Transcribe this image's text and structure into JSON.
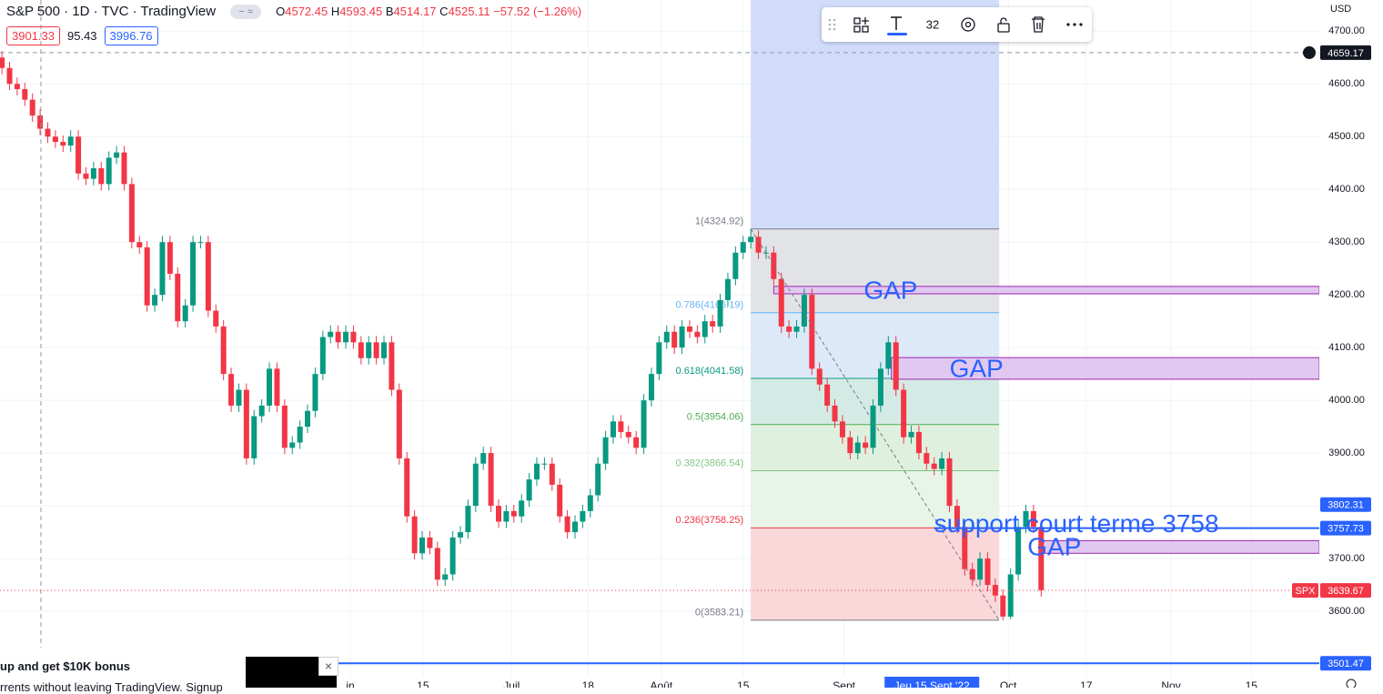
{
  "header": {
    "symbol": "S&P 500 · 1D · TVC · TradingView",
    "ohlc": [
      {
        "key": "O",
        "value": "4572.45"
      },
      {
        "key": "H",
        "value": "4593.45"
      },
      {
        "key": "B",
        "value": "4514.17"
      },
      {
        "key": "C",
        "value": "4525.11"
      }
    ],
    "change": "−57.52 (−1.26%)",
    "sell": "3901.33",
    "spread": "95.43",
    "buy": "3996.76"
  },
  "toolbar": {
    "font_size": "32"
  },
  "banner": {
    "title": "up and get $10K bonus",
    "text": "rrents without leaving TradingView. Signup"
  },
  "chart_data": {
    "type": "candlestick",
    "up_color": "#089981",
    "down_color": "#f23645",
    "open": [
      4650,
      4630,
      4600,
      4590,
      4570,
      4540,
      4515,
      4500,
      4490,
      4483,
      4500,
      4430,
      4420,
      4440,
      4410,
      4460,
      4470,
      4410,
      4300,
      4290,
      4180,
      4200,
      4300,
      4240,
      4150,
      4180,
      4300,
      4300,
      4170,
      4140,
      4050,
      3990,
      4020,
      3890,
      3970,
      3990,
      4060,
      3990,
      3910,
      3920,
      3950,
      3980,
      4050,
      4120,
      4130,
      4110,
      4130,
      4110,
      4080,
      4110,
      4080,
      4110,
      4020,
      3890,
      3780,
      3710,
      3740,
      3720,
      3660,
      3670,
      3740,
      3750,
      3800,
      3880,
      3900,
      3800,
      3770,
      3790,
      3780,
      3810,
      3850,
      3880,
      3880,
      3840,
      3780,
      3750,
      3770,
      3790,
      3820,
      3880,
      3930,
      3960,
      3940,
      3930,
      3910,
      4000,
      4050,
      4110,
      4130,
      4100,
      4140,
      4130,
      4120,
      4150,
      4140,
      4190,
      4230,
      4280,
      4300,
      4310,
      4280,
      4280,
      4230,
      4140,
      4130,
      4140,
      4200,
      4060,
      4030,
      3990,
      3960,
      3930,
      3900,
      3920,
      3910,
      3990,
      4060,
      4110,
      4020,
      3930,
      3940,
      3900,
      3880,
      3870,
      3890,
      3800,
      3760,
      3680,
      3660,
      3700,
      3650,
      3630,
      3590,
      3670,
      3760,
      3790,
      3760
    ],
    "high": [
      4662,
      4642,
      4612,
      4602,
      4582,
      4552,
      4527,
      4512,
      4502,
      4512,
      4512,
      4442,
      4452,
      4452,
      4472,
      4482,
      4482,
      4422,
      4312,
      4302,
      4212,
      4312,
      4312,
      4252,
      4192,
      4312,
      4312,
      4312,
      4182,
      4152,
      4062,
      4032,
      4032,
      3982,
      4002,
      4072,
      4072,
      4002,
      3932,
      3962,
      3992,
      4062,
      4132,
      4142,
      4142,
      4142,
      4142,
      4122,
      4122,
      4122,
      4122,
      4122,
      4032,
      3902,
      3792,
      3752,
      3752,
      3732,
      3682,
      3752,
      3762,
      3812,
      3892,
      3912,
      3912,
      3812,
      3802,
      3802,
      3822,
      3862,
      3892,
      3892,
      3892,
      3852,
      3792,
      3782,
      3802,
      3832,
      3892,
      3942,
      3972,
      3972,
      3952,
      3942,
      4012,
      4062,
      4122,
      4142,
      4142,
      4152,
      4152,
      4142,
      4162,
      4162,
      4202,
      4242,
      4292,
      4312,
      4325,
      4322,
      4292,
      4292,
      4242,
      4152,
      4152,
      4212,
      4212,
      4072,
      4042,
      4002,
      3972,
      3942,
      3932,
      3932,
      4002,
      4072,
      4122,
      4122,
      4032,
      3952,
      3952,
      3912,
      3892,
      3902,
      3902,
      3812,
      3772,
      3692,
      3712,
      3712,
      3662,
      3642,
      3682,
      3772,
      3802,
      3802,
      3772
    ],
    "low": [
      4618,
      4588,
      4578,
      4558,
      4528,
      4503,
      4488,
      4478,
      4471,
      4471,
      4418,
      4408,
      4408,
      4398,
      4398,
      4448,
      4398,
      4288,
      4278,
      4168,
      4168,
      4188,
      4228,
      4138,
      4138,
      4168,
      4288,
      4158,
      4128,
      4038,
      3978,
      3978,
      3878,
      3878,
      3958,
      3978,
      3978,
      3898,
      3898,
      3908,
      3938,
      3968,
      4038,
      4108,
      4098,
      4098,
      4098,
      4068,
      4068,
      4068,
      4068,
      4008,
      3878,
      3768,
      3698,
      3698,
      3708,
      3648,
      3648,
      3658,
      3728,
      3738,
      3788,
      3868,
      3788,
      3758,
      3758,
      3768,
      3768,
      3798,
      3838,
      3868,
      3828,
      3768,
      3738,
      3738,
      3758,
      3778,
      3808,
      3868,
      3918,
      3928,
      3918,
      3898,
      3898,
      3988,
      4038,
      4098,
      4088,
      4088,
      4118,
      4108,
      4108,
      4128,
      4128,
      4178,
      4218,
      4268,
      4288,
      4268,
      4268,
      4218,
      4128,
      4118,
      4118,
      4128,
      4048,
      4018,
      3978,
      3948,
      3918,
      3888,
      3888,
      3898,
      3898,
      3978,
      4048,
      4008,
      3918,
      3918,
      3888,
      3868,
      3858,
      3858,
      3788,
      3748,
      3668,
      3648,
      3648,
      3638,
      3618,
      3583,
      3585,
      3658,
      3748,
      3748,
      3628
    ],
    "close": [
      4630,
      4600,
      4590,
      4570,
      4540,
      4515,
      4500,
      4490,
      4483,
      4500,
      4430,
      4420,
      4440,
      4410,
      4460,
      4470,
      4410,
      4300,
      4290,
      4180,
      4200,
      4300,
      4240,
      4150,
      4180,
      4300,
      4300,
      4170,
      4140,
      4050,
      3990,
      4020,
      3890,
      3970,
      3990,
      4060,
      3990,
      3910,
      3920,
      3950,
      3980,
      4050,
      4120,
      4130,
      4110,
      4130,
      4110,
      4080,
      4110,
      4080,
      4110,
      4020,
      3890,
      3780,
      3710,
      3740,
      3720,
      3660,
      3670,
      3740,
      3750,
      3800,
      3880,
      3900,
      3800,
      3770,
      3790,
      3780,
      3810,
      3850,
      3880,
      3880,
      3840,
      3780,
      3750,
      3770,
      3790,
      3820,
      3880,
      3930,
      3960,
      3940,
      3930,
      3910,
      4000,
      4050,
      4110,
      4130,
      4100,
      4140,
      4130,
      4120,
      4150,
      4140,
      4190,
      4230,
      4280,
      4300,
      4310,
      4280,
      4280,
      4230,
      4140,
      4130,
      4140,
      4200,
      4060,
      4030,
      3990,
      3960,
      3930,
      3900,
      3920,
      3910,
      3990,
      4060,
      4110,
      4020,
      3930,
      3940,
      3900,
      3880,
      3870,
      3890,
      3800,
      3760,
      3680,
      3660,
      3700,
      3650,
      3630,
      3590,
      3670,
      3760,
      3790,
      3760,
      3640
    ],
    "xlim": [
      -0.25,
      172.4
    ],
    "xticks": [
      {
        "value": 45.6,
        "label": "in"
      },
      {
        "value": 55.1,
        "label": "15"
      },
      {
        "value": 66.7,
        "label": "Juil"
      },
      {
        "value": 76.7,
        "label": "18"
      },
      {
        "value": 86.3,
        "label": "Août"
      },
      {
        "value": 97,
        "label": "15"
      },
      {
        "value": 110.2,
        "label": "Sept"
      },
      {
        "value": 131.7,
        "label": "Oct"
      },
      {
        "value": 141.9,
        "label": "17"
      },
      {
        "value": 153,
        "label": "Nov"
      },
      {
        "value": 163.5,
        "label": "15"
      }
    ],
    "crosshair_x": {
      "value": 121.7,
      "label": "Jeu 15 Sept '22"
    },
    "ylim": [
      3476,
      4759
    ],
    "yticks": [
      {
        "value": 3600,
        "label": "3600.00"
      },
      {
        "value": 3700,
        "label": "3700.00"
      },
      {
        "value": 3800,
        "label": "3800.00"
      },
      {
        "value": 3900,
        "label": "3900.00"
      },
      {
        "value": 4000,
        "label": "4000.00"
      },
      {
        "value": 4100,
        "label": "4100.00"
      },
      {
        "value": 4200,
        "label": "4200.00"
      },
      {
        "value": 4300,
        "label": "4300.00"
      },
      {
        "value": 4400,
        "label": "4400.00"
      },
      {
        "value": 4500,
        "label": "4500.00"
      },
      {
        "value": 4600,
        "label": "4600.00"
      },
      {
        "value": 4700,
        "label": "4700.00"
      }
    ],
    "y_unit": "USD",
    "grid": true,
    "hover_x": 5.1,
    "date_range": {
      "x_start": 98,
      "x_end": 130.5,
      "color": "#d1dcfb"
    },
    "fib": {
      "x_start": 98,
      "x_end": 130.5,
      "levels": [
        {
          "price": 4324.92,
          "label": "1(4324.92)",
          "color": "#787b86",
          "fill": "#e2e3e6"
        },
        {
          "price": 4166.19,
          "label": "0.786(4166.19)",
          "color": "#64b5f6",
          "fill": "#dbe9f8"
        },
        {
          "price": 4041.58,
          "label": "0.618(4041.58)",
          "color": "#089981",
          "fill": "#d4ebe5"
        },
        {
          "price": 3954.06,
          "label": "0.5(3954.06)",
          "color": "#4caf50",
          "fill": "#e0f0df"
        },
        {
          "price": 3866.54,
          "label": "0.382(3866.54)",
          "color": "#81c784",
          "fill": "#e8f4e8"
        },
        {
          "price": 3758.25,
          "label": "0.236(3758.25)",
          "color": "#f23645",
          "fill": "#fad7d9"
        },
        {
          "price": 3583.21,
          "label": "0(3583.21)",
          "color": "#787b86"
        }
      ]
    },
    "zones": [
      {
        "label": "GAP",
        "x_start": 101,
        "top": 4216,
        "bottom": 4202,
        "color": "#e1c8f0",
        "edge": "#9c27b0"
      },
      {
        "label": "GAP",
        "x_start": 116.4,
        "top": 4081,
        "bottom": 4040,
        "color": "#e1c8f0",
        "edge": "#9c27b0"
      },
      {
        "label": "GAP",
        "x_start": 136,
        "top": 3734,
        "bottom": 3710,
        "color": "#e1c8f0",
        "edge": "#9c27b0"
      }
    ],
    "lines": [
      {
        "price": 3757.73,
        "x_start": 122,
        "color": "#2962ff",
        "label": "support court terme 3758"
      },
      {
        "price": 3501.47,
        "x_start": 0,
        "color": "#2962ff"
      }
    ],
    "price_labels": [
      {
        "value": 4659.17,
        "bg": "#131722",
        "line": "dashed"
      },
      {
        "value": 3802.31,
        "bg": "#2962ff"
      },
      {
        "value": 3757.73,
        "bg": "#2962ff"
      },
      {
        "value": 3639.67,
        "bg": "#f23645",
        "tag": "SPX",
        "line": "dotted"
      },
      {
        "value": 3501.47,
        "bg": "#2962ff"
      }
    ]
  }
}
